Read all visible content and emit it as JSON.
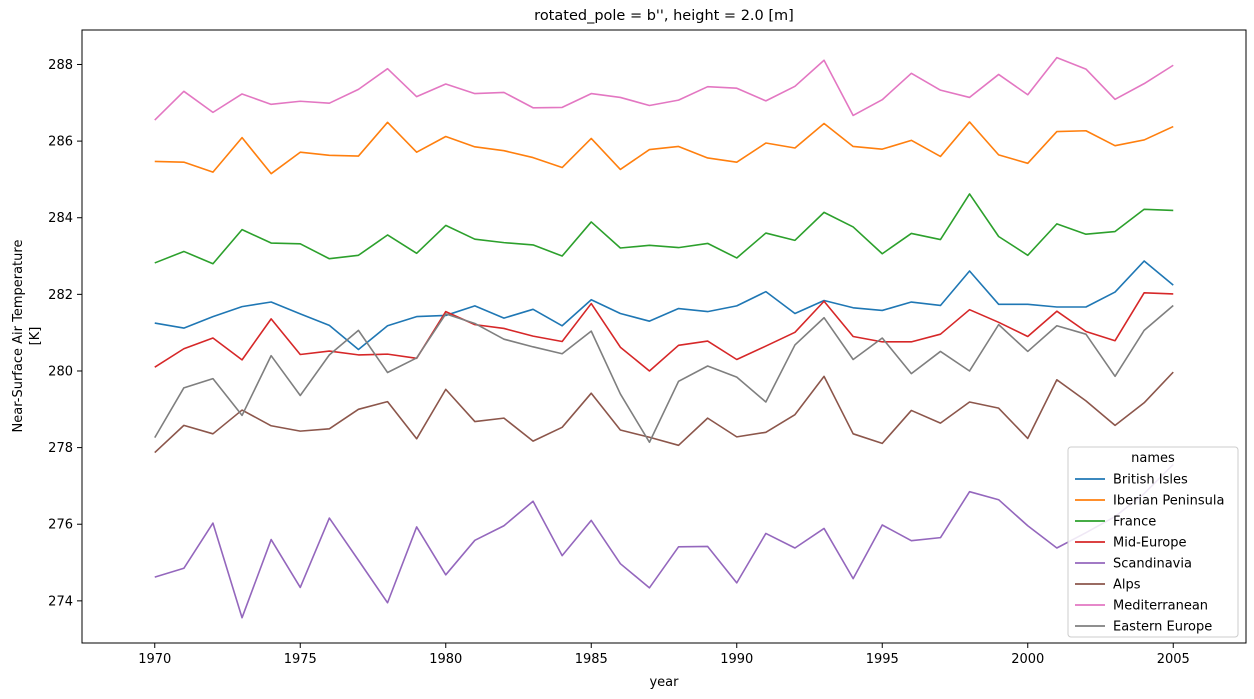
{
  "chart_data": {
    "type": "line",
    "title": "rotated_pole = b'', height = 2.0 [m]",
    "xlabel": "year",
    "ylabel_lines": [
      "Near-Surface Air Temperature",
      "[K]"
    ],
    "xlim": [
      1967.5,
      2007.5
    ],
    "ylim": [
      272.9,
      288.9
    ],
    "xticks": [
      1970,
      1975,
      1980,
      1985,
      1990,
      1995,
      2000,
      2005
    ],
    "yticks": [
      274,
      276,
      278,
      280,
      282,
      284,
      286,
      288
    ],
    "grid": false,
    "legend": {
      "title": "names",
      "placement": "lower-right"
    },
    "x": [
      1970,
      1971,
      1972,
      1973,
      1974,
      1975,
      1976,
      1977,
      1978,
      1979,
      1980,
      1981,
      1982,
      1983,
      1984,
      1985,
      1986,
      1987,
      1988,
      1989,
      1990,
      1991,
      1992,
      1993,
      1994,
      1995,
      1996,
      1997,
      1998,
      1999,
      2000,
      2001,
      2002,
      2003,
      2004,
      2005
    ],
    "series": [
      {
        "name": "British Isles",
        "color": "#1f77b4",
        "values": [
          281.25,
          281.12,
          281.42,
          281.68,
          281.8,
          281.49,
          281.19,
          280.56,
          281.18,
          281.42,
          281.45,
          281.7,
          281.38,
          281.61,
          281.18,
          281.86,
          281.5,
          281.3,
          281.63,
          281.55,
          281.7,
          282.07,
          281.5,
          281.84,
          281.65,
          281.58,
          281.8,
          281.71,
          282.61,
          281.74,
          281.74,
          281.67,
          281.67,
          282.06,
          282.87,
          282.24
        ]
      },
      {
        "name": "Iberian Peninsula",
        "color": "#ff7f0e",
        "values": [
          285.47,
          285.45,
          285.19,
          286.09,
          285.15,
          285.71,
          285.63,
          285.61,
          286.49,
          285.71,
          286.12,
          285.85,
          285.75,
          285.57,
          285.31,
          286.07,
          285.26,
          285.78,
          285.86,
          285.56,
          285.45,
          285.95,
          285.82,
          286.46,
          285.86,
          285.79,
          286.02,
          285.6,
          286.5,
          285.64,
          285.42,
          286.25,
          286.27,
          285.88,
          286.03,
          286.38
        ]
      },
      {
        "name": "France",
        "color": "#2ca02c",
        "values": [
          282.82,
          283.12,
          282.8,
          283.69,
          283.34,
          283.32,
          282.93,
          283.02,
          283.55,
          283.07,
          283.8,
          283.44,
          283.35,
          283.29,
          283.0,
          283.89,
          283.21,
          283.28,
          283.22,
          283.33,
          282.95,
          283.6,
          283.41,
          284.14,
          283.76,
          283.06,
          283.59,
          283.43,
          284.62,
          283.51,
          283.02,
          283.84,
          283.57,
          283.64,
          284.22,
          284.19
        ]
      },
      {
        "name": "Mid-Europe",
        "color": "#d62728",
        "values": [
          280.1,
          280.58,
          280.86,
          280.29,
          281.36,
          280.43,
          280.52,
          280.42,
          280.44,
          280.33,
          281.55,
          281.21,
          281.11,
          280.91,
          280.77,
          281.76,
          280.62,
          280.0,
          280.67,
          280.78,
          280.3,
          280.65,
          281.01,
          281.82,
          280.9,
          280.76,
          280.76,
          280.96,
          281.6,
          281.27,
          280.9,
          281.56,
          281.03,
          280.79,
          282.04,
          282.01
        ]
      },
      {
        "name": "Scandinavia",
        "color": "#9467bd",
        "values": [
          274.62,
          274.85,
          276.03,
          273.56,
          275.6,
          274.35,
          276.16,
          275.06,
          273.95,
          275.93,
          274.68,
          275.58,
          275.96,
          276.6,
          275.18,
          276.1,
          274.97,
          274.34,
          275.41,
          275.42,
          274.47,
          275.76,
          275.38,
          275.89,
          274.58,
          275.98,
          275.57,
          275.65,
          276.85,
          276.64,
          275.96,
          275.38,
          275.78,
          276.2,
          276.8,
          277.56
        ]
      },
      {
        "name": "Alps",
        "color": "#8c564b",
        "values": [
          277.87,
          278.58,
          278.36,
          278.98,
          278.57,
          278.43,
          278.49,
          279.0,
          279.2,
          278.23,
          279.52,
          278.68,
          278.77,
          278.17,
          278.53,
          279.42,
          278.46,
          278.27,
          278.06,
          278.77,
          278.28,
          278.4,
          278.86,
          279.86,
          278.36,
          278.11,
          278.97,
          278.64,
          279.19,
          279.03,
          278.24,
          279.77,
          279.22,
          278.58,
          279.17,
          279.97
        ]
      },
      {
        "name": "Mediterranean",
        "color": "#e377c2",
        "values": [
          286.55,
          287.3,
          286.75,
          287.23,
          286.96,
          287.04,
          286.99,
          287.35,
          287.89,
          287.16,
          287.49,
          287.24,
          287.27,
          286.87,
          286.88,
          287.24,
          287.14,
          286.93,
          287.07,
          287.42,
          287.38,
          287.05,
          287.43,
          288.11,
          286.67,
          287.08,
          287.77,
          287.33,
          287.14,
          287.74,
          287.21,
          288.18,
          287.88,
          287.09,
          287.5,
          287.98
        ]
      },
      {
        "name": "Eastern Europe",
        "color": "#7f7f7f",
        "values": [
          278.26,
          279.56,
          279.8,
          278.84,
          280.4,
          279.36,
          280.42,
          281.06,
          279.96,
          280.34,
          281.49,
          281.24,
          280.83,
          280.63,
          280.45,
          281.04,
          279.4,
          278.14,
          279.73,
          280.13,
          279.84,
          279.19,
          280.68,
          281.39,
          280.3,
          280.86,
          279.93,
          280.51,
          280.0,
          281.21,
          280.51,
          281.18,
          280.96,
          279.86,
          281.06,
          281.71
        ]
      }
    ]
  }
}
